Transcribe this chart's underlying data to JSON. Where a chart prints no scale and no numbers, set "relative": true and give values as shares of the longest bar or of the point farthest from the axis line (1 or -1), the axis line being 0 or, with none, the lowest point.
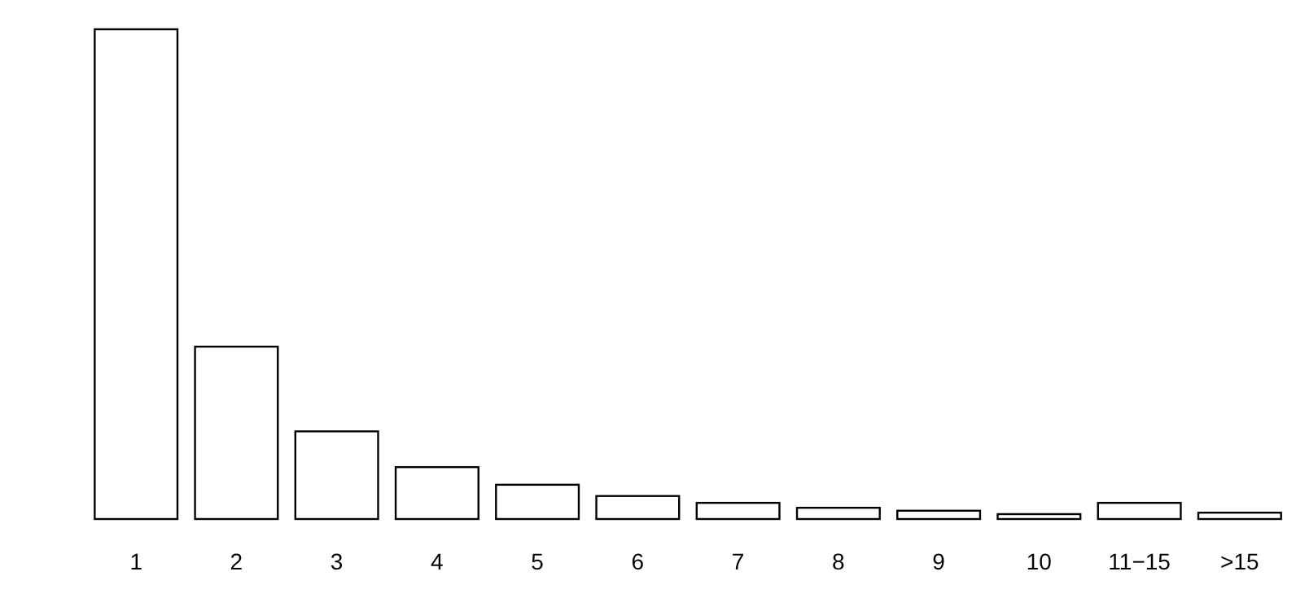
{
  "chart_data": {
    "type": "bar",
    "relative": true,
    "categories": [
      "1",
      "2",
      "3",
      "4",
      "5",
      "6",
      "7",
      "8",
      "9",
      "10",
      "11−15",
      ">15"
    ],
    "values": [
      1,
      0.352,
      0.179,
      0.106,
      0.07,
      0.047,
      0.033,
      0.023,
      0.017,
      0.01,
      0.033,
      0.013
    ],
    "color": "#ffffff"
  }
}
